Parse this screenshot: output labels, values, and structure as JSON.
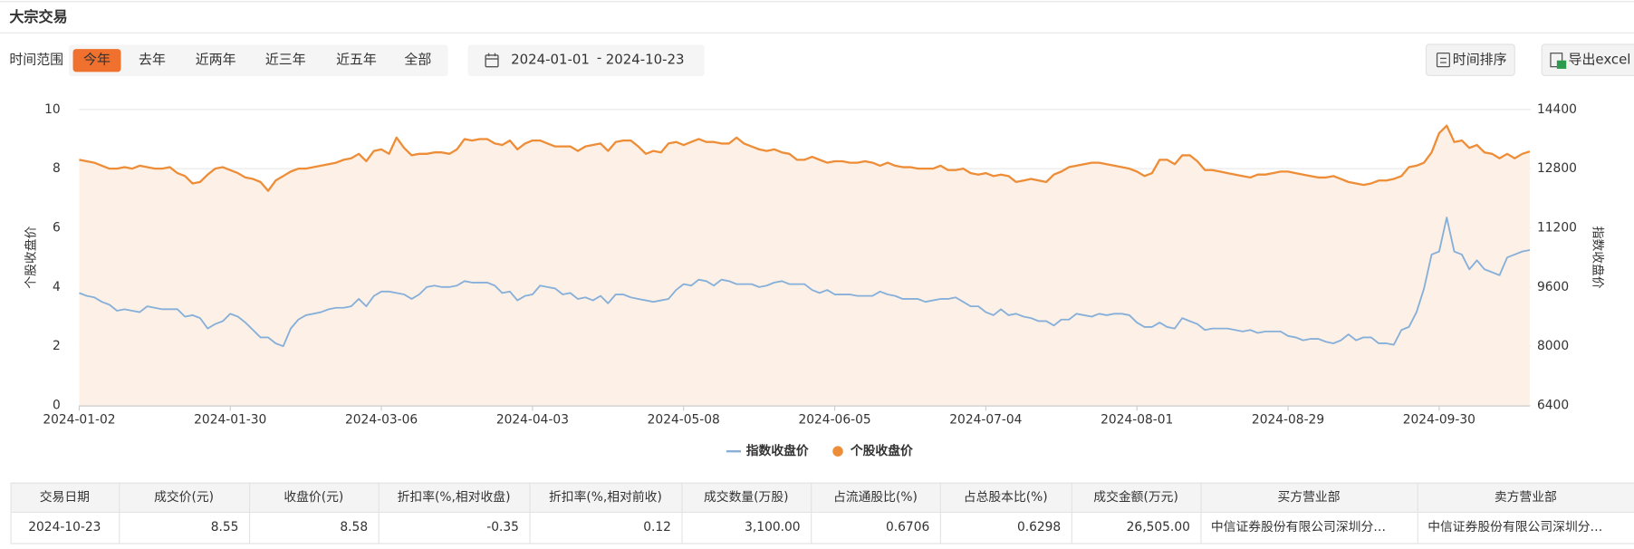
{
  "header": {
    "title": "大宗交易"
  },
  "filters": {
    "label": "时间范围",
    "ranges": [
      "今年",
      "去年",
      "近两年",
      "近三年",
      "近五年",
      "全部"
    ],
    "active": 0,
    "start": "2024-01-01",
    "separator": "-",
    "end": "2024-10-23"
  },
  "buttons": [
    "时间排序",
    "导出excel"
  ],
  "chart_data": {
    "type": "line",
    "ylabel": "个股收盘价",
    "y2label": "指数收盘价",
    "ylim": [
      0,
      10
    ],
    "yticks": [
      0,
      2,
      4,
      6,
      8,
      10
    ],
    "y2lim": [
      6400,
      14400
    ],
    "y2ticks": [
      6400,
      8000,
      9600,
      11200,
      12800,
      14400
    ],
    "grid": true,
    "legend": "bottom",
    "categories": [
      "2024-01-02",
      null,
      null,
      null,
      null,
      null,
      null,
      null,
      null,
      null,
      null,
      null,
      null,
      null,
      null,
      null,
      null,
      null,
      null,
      null,
      "2024-01-30",
      null,
      null,
      null,
      null,
      null,
      null,
      null,
      null,
      null,
      null,
      null,
      null,
      null,
      null,
      null,
      null,
      null,
      null,
      null,
      "2024-03-06",
      null,
      null,
      null,
      null,
      null,
      null,
      null,
      null,
      null,
      null,
      null,
      null,
      null,
      null,
      null,
      null,
      null,
      null,
      null,
      "2024-04-03",
      null,
      null,
      null,
      null,
      null,
      null,
      null,
      null,
      null,
      null,
      null,
      null,
      null,
      null,
      null,
      null,
      null,
      null,
      null,
      "2024-05-08",
      null,
      null,
      null,
      null,
      null,
      null,
      null,
      null,
      null,
      null,
      null,
      null,
      null,
      null,
      null,
      null,
      null,
      null,
      null,
      "2024-06-05",
      null,
      null,
      null,
      null,
      null,
      null,
      null,
      null,
      null,
      null,
      null,
      null,
      null,
      null,
      null,
      null,
      null,
      null,
      null,
      "2024-07-04",
      null,
      null,
      null,
      null,
      null,
      null,
      null,
      null,
      null,
      null,
      null,
      null,
      null,
      null,
      null,
      null,
      null,
      null,
      null,
      "2024-08-01",
      null,
      null,
      null,
      null,
      null,
      null,
      null,
      null,
      null,
      null,
      null,
      null,
      null,
      null,
      null,
      null,
      null,
      null,
      null,
      "2024-08-29",
      null,
      null,
      null,
      null,
      null,
      null,
      null,
      null,
      null,
      null,
      null,
      null,
      null,
      null,
      null,
      null,
      null,
      null,
      null,
      "2024-09-30",
      null,
      null,
      null,
      null,
      null,
      null,
      null,
      null,
      null,
      null,
      null,
      null
    ],
    "series": [
      {
        "name": "指数收盘价",
        "color": "#86afd9",
        "axis": "y2",
        "values": [
          9440,
          9360,
          9320,
          9200,
          9120,
          8960,
          9000,
          8960,
          8920,
          9080,
          9040,
          9000,
          9000,
          9000,
          8800,
          8840,
          8760,
          8480,
          8600,
          8680,
          8880,
          8800,
          8640,
          8440,
          8240,
          8240,
          8080,
          8000,
          8480,
          8720,
          8840,
          8880,
          8920,
          9000,
          9040,
          9040,
          9080,
          9280,
          9080,
          9360,
          9480,
          9480,
          9440,
          9400,
          9280,
          9400,
          9600,
          9640,
          9600,
          9600,
          9640,
          9760,
          9720,
          9720,
          9720,
          9640,
          9440,
          9480,
          9240,
          9360,
          9400,
          9640,
          9600,
          9560,
          9400,
          9440,
          9280,
          9320,
          9240,
          9360,
          9160,
          9400,
          9400,
          9320,
          9280,
          9240,
          9200,
          9240,
          9280,
          9520,
          9680,
          9640,
          9800,
          9760,
          9640,
          9800,
          9760,
          9680,
          9680,
          9680,
          9600,
          9640,
          9720,
          9760,
          9680,
          9680,
          9680,
          9520,
          9440,
          9520,
          9400,
          9400,
          9400,
          9360,
          9360,
          9360,
          9480,
          9400,
          9360,
          9280,
          9280,
          9280,
          9200,
          9240,
          9280,
          9280,
          9320,
          9200,
          9080,
          9080,
          8920,
          8840,
          9000,
          8840,
          8880,
          8800,
          8760,
          8680,
          8680,
          8560,
          8720,
          8720,
          8880,
          8840,
          8800,
          8880,
          8840,
          8880,
          8880,
          8840,
          8640,
          8520,
          8520,
          8640,
          8520,
          8480,
          8760,
          8680,
          8600,
          8440,
          8480,
          8480,
          8480,
          8440,
          8400,
          8440,
          8360,
          8400,
          8400,
          8400,
          8280,
          8240,
          8160,
          8200,
          8200,
          8120,
          8080,
          8160,
          8320,
          8160,
          8240,
          8240,
          8080,
          8080,
          8040,
          8440,
          8520,
          8920,
          9560,
          10480,
          10560,
          11480,
          10560,
          10480,
          10080,
          10320,
          10080,
          10000,
          9920,
          10400,
          10480,
          10560,
          10600
        ]
      },
      {
        "name": "个股收盘价",
        "color": "#ee8d37",
        "area_color": "#fdf1e7",
        "values": [
          8.3,
          8.25,
          8.2,
          8.1,
          8.0,
          8.0,
          8.05,
          8.0,
          8.1,
          8.05,
          8.0,
          8.0,
          8.05,
          7.85,
          7.75,
          7.5,
          7.55,
          7.8,
          8.0,
          8.05,
          7.95,
          7.85,
          7.7,
          7.65,
          7.55,
          7.25,
          7.6,
          7.75,
          7.9,
          8.0,
          8.0,
          8.05,
          8.1,
          8.15,
          8.2,
          8.3,
          8.35,
          8.5,
          8.25,
          8.6,
          8.65,
          8.5,
          9.05,
          8.7,
          8.45,
          8.5,
          8.5,
          8.55,
          8.55,
          8.5,
          8.65,
          9.0,
          8.95,
          9.0,
          9.0,
          8.85,
          8.8,
          8.95,
          8.65,
          8.85,
          8.95,
          8.95,
          8.85,
          8.75,
          8.75,
          8.75,
          8.6,
          8.75,
          8.8,
          8.85,
          8.6,
          8.9,
          8.95,
          8.95,
          8.75,
          8.5,
          8.6,
          8.55,
          8.85,
          8.9,
          8.8,
          8.9,
          9.0,
          8.9,
          8.9,
          8.85,
          8.85,
          9.05,
          8.85,
          8.75,
          8.65,
          8.6,
          8.65,
          8.55,
          8.5,
          8.3,
          8.3,
          8.4,
          8.3,
          8.2,
          8.25,
          8.25,
          8.2,
          8.2,
          8.25,
          8.2,
          8.1,
          8.2,
          8.1,
          8.05,
          8.05,
          8.0,
          8.0,
          8.0,
          8.1,
          7.95,
          7.95,
          8.0,
          7.85,
          7.8,
          7.85,
          7.75,
          7.8,
          7.75,
          7.55,
          7.6,
          7.65,
          7.6,
          7.55,
          7.8,
          7.9,
          8.05,
          8.1,
          8.15,
          8.2,
          8.2,
          8.15,
          8.1,
          8.05,
          8.0,
          7.9,
          7.75,
          7.85,
          8.3,
          8.3,
          8.15,
          8.45,
          8.45,
          8.25,
          7.95,
          7.95,
          7.9,
          7.85,
          7.8,
          7.75,
          7.7,
          7.8,
          7.8,
          7.85,
          7.9,
          7.9,
          7.85,
          7.8,
          7.75,
          7.7,
          7.7,
          7.75,
          7.65,
          7.55,
          7.5,
          7.45,
          7.5,
          7.6,
          7.6,
          7.65,
          7.75,
          8.05,
          8.1,
          8.2,
          8.55,
          9.2,
          9.45,
          8.9,
          8.95,
          8.7,
          8.8,
          8.55,
          8.5,
          8.35,
          8.5,
          8.35,
          8.5,
          8.58
        ]
      }
    ]
  },
  "table": {
    "columns": [
      "交易日期",
      "成交价(元)",
      "收盘价(元)",
      "折扣率(%,相对收盘)",
      "折扣率(%,相对前收)",
      "成交数量(万股)",
      "占流通股比(%)",
      "占总股本比(%)",
      "成交金额(万元)",
      "买方营业部",
      "卖方营业部"
    ],
    "rows": [
      [
        "2024-10-23",
        "8.55",
        "8.58",
        "-0.35",
        "0.12",
        "3,100.00",
        "0.6706",
        "0.6298",
        "26,505.00",
        "中信证券股份有限公司深圳分…",
        "中信证券股份有限公司深圳分…"
      ]
    ]
  }
}
